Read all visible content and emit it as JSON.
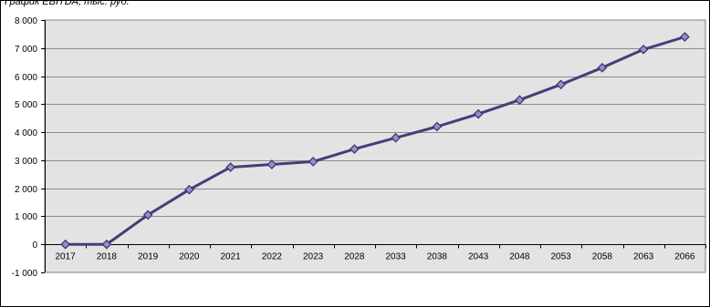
{
  "chart_data": {
    "type": "line",
    "title": "График EBITDA, тыс. руб.",
    "xlabel": "",
    "ylabel": "",
    "categories": [
      "2017",
      "2018",
      "2019",
      "2020",
      "2021",
      "2022",
      "2023",
      "2028",
      "2033",
      "2038",
      "2043",
      "2048",
      "2053",
      "2058",
      "2063",
      "2066"
    ],
    "series": [
      {
        "values": [
          0,
          0,
          1050,
          1950,
          2750,
          2850,
          2950,
          3400,
          3800,
          4200,
          4650,
          5150,
          5700,
          6300,
          6950,
          7400
        ]
      }
    ],
    "ylim": [
      -1000,
      8000
    ],
    "yticks": [
      -1000,
      0,
      1000,
      2000,
      3000,
      4000,
      5000,
      6000,
      7000,
      8000
    ],
    "ytick_labels": [
      "-1 000",
      "0",
      "1 000",
      "2 000",
      "3 000",
      "4 000",
      "5 000",
      "6 000",
      "7 000",
      "8 000"
    ],
    "grid": true,
    "legend": "none",
    "colors": {
      "plot_area": "#e3e3e3",
      "line": "#4b3b7a",
      "marker_fill": "#9a8cc7",
      "marker_stroke": "#3e2f6e",
      "grid": "#8c8c8c"
    }
  }
}
